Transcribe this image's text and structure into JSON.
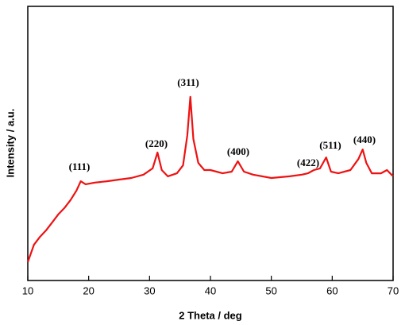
{
  "chart_data": {
    "type": "line",
    "x_label": "2 Theta / deg",
    "y_label": "Intensity / a.u.",
    "xlim": [
      10,
      70
    ],
    "xticks": [
      10,
      20,
      30,
      40,
      50,
      60,
      70
    ],
    "ylim": [
      0,
      100
    ],
    "series": [
      {
        "name": null,
        "color": "#ee1111",
        "x": [
          10,
          11,
          12,
          13,
          14,
          15,
          16,
          17,
          18,
          18.7,
          19.5,
          21,
          23,
          25,
          27,
          29,
          30.5,
          31.3,
          32,
          33,
          34.5,
          35.5,
          36.2,
          36.7,
          37.2,
          38,
          39,
          40,
          42,
          43.5,
          44.5,
          45.5,
          47,
          50,
          53,
          55,
          56,
          57,
          58,
          59,
          59.8,
          61,
          63,
          64.3,
          65,
          65.6,
          66.5,
          68,
          69,
          70
        ],
        "values": [
          6.7,
          13.0,
          15.9,
          18.3,
          21.2,
          24.1,
          26.4,
          29.3,
          32.8,
          36.2,
          35.1,
          35.7,
          36.2,
          36.8,
          37.4,
          38.6,
          40.9,
          46.7,
          40.3,
          38.0,
          39.1,
          42.0,
          53.0,
          67.0,
          51.6,
          42.9,
          40.3,
          40.3,
          39.1,
          39.7,
          43.5,
          39.7,
          38.6,
          37.4,
          38.0,
          38.6,
          39.1,
          40.3,
          40.9,
          44.9,
          39.7,
          39.1,
          40.3,
          44.3,
          47.8,
          42.9,
          39.1,
          39.1,
          40.3,
          38.0
        ]
      }
    ],
    "annotations": [
      "(111)",
      "(220)",
      "(311)",
      "(400)",
      "(422)",
      "(511)",
      "(440)"
    ]
  }
}
